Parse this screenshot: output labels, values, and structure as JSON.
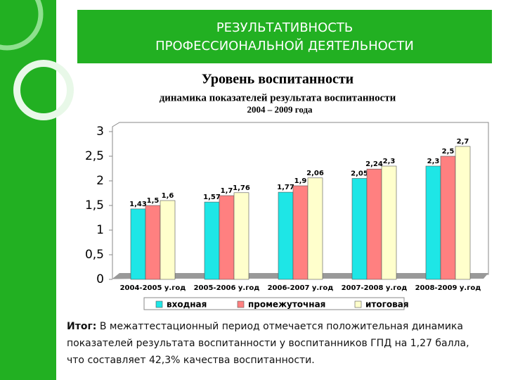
{
  "slide": {
    "header": [
      "РЕЗУЛЬТАТИВНОСТЬ",
      "ПРОФЕССИОНАЛЬНОЙ ДЕЯТЕЛЬНОСТИ"
    ],
    "summary_label": "Итог:",
    "summary": "В межаттестационный период отмечается положительная динамика показателей результата воспитанности у воспитанников ГПД на 1,27 балла, что составляет 42,3% качества воспитанности."
  },
  "chart_data": {
    "type": "bar",
    "title": "Уровень воспитанности",
    "subtitle": "динамика показателей результата воспитанности",
    "subtitle2": "2004 – 2009  года",
    "categories": [
      "2004-2005 у.год",
      "2005-2006 у.год",
      "2006-2007 у.год",
      "2007-2008 у.год",
      "2008-2009 у.год"
    ],
    "series": [
      {
        "name": "входная",
        "color": "#1ee6e6",
        "values": [
          1.43,
          1.57,
          1.77,
          2.05,
          2.3
        ],
        "value_labels": [
          "1,43",
          "1,57",
          "1,77",
          "2,05",
          "2,3"
        ]
      },
      {
        "name": "промежуточная",
        "color": "#ff8080",
        "values": [
          1.5,
          1.7,
          1.9,
          2.24,
          2.5
        ],
        "value_labels": [
          "1,5",
          "1,7",
          "1,9",
          "2,24",
          "2,5"
        ]
      },
      {
        "name": "итоговая",
        "color": "#ffffcc",
        "values": [
          1.6,
          1.76,
          2.06,
          2.3,
          2.7
        ],
        "value_labels": [
          "1,6",
          "1,76",
          "2,06",
          "2,3",
          "2,7"
        ]
      }
    ],
    "ylim": [
      0,
      3
    ],
    "yticks": [
      0,
      {
        "value": 0.5,
        "label": "0,5"
      },
      1,
      {
        "value": 1.5,
        "label": "1,5"
      },
      2,
      {
        "value": 2.5,
        "label": "2,5"
      },
      3
    ],
    "legend": "bottom"
  }
}
